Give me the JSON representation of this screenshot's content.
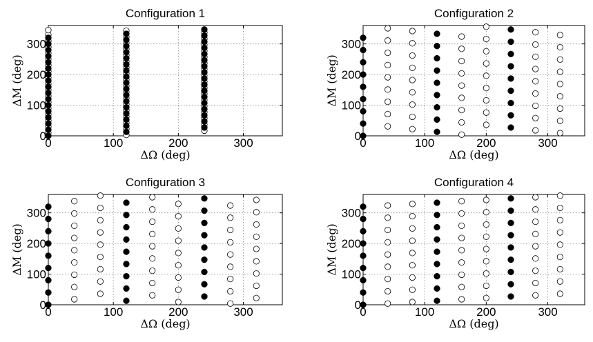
{
  "chart_data": [
    {
      "type": "scatter",
      "title": "Configuration 1",
      "xlabel": "ΔΩ (deg)",
      "ylabel": "ΔM (deg)",
      "xlim": [
        0,
        360
      ],
      "ylim": [
        0,
        360
      ],
      "xticks": [
        0,
        100,
        200,
        300
      ],
      "yticks": [
        0,
        100,
        200,
        300
      ],
      "grid": true,
      "filled": [
        [
          0,
          0
        ],
        [
          0,
          20
        ],
        [
          0,
          40
        ],
        [
          0,
          60
        ],
        [
          0,
          80
        ],
        [
          0,
          100
        ],
        [
          0,
          120
        ],
        [
          0,
          140
        ],
        [
          0,
          160
        ],
        [
          0,
          180
        ],
        [
          0,
          200
        ],
        [
          0,
          220
        ],
        [
          0,
          240
        ],
        [
          0,
          260
        ],
        [
          0,
          280
        ],
        [
          0,
          300
        ],
        [
          0,
          320
        ],
        [
          120,
          13
        ],
        [
          120,
          33
        ],
        [
          120,
          53
        ],
        [
          120,
          73
        ],
        [
          120,
          93
        ],
        [
          120,
          113
        ],
        [
          120,
          133
        ],
        [
          120,
          153
        ],
        [
          120,
          173
        ],
        [
          120,
          193
        ],
        [
          120,
          213
        ],
        [
          120,
          233
        ],
        [
          120,
          253
        ],
        [
          120,
          273
        ],
        [
          120,
          293
        ],
        [
          120,
          313
        ],
        [
          120,
          333
        ],
        [
          240,
          27
        ],
        [
          240,
          47
        ],
        [
          240,
          67
        ],
        [
          240,
          87
        ],
        [
          240,
          107
        ],
        [
          240,
          127
        ],
        [
          240,
          147
        ],
        [
          240,
          167
        ],
        [
          240,
          187
        ],
        [
          240,
          207
        ],
        [
          240,
          227
        ],
        [
          240,
          247
        ],
        [
          240,
          267
        ],
        [
          240,
          287
        ],
        [
          240,
          307
        ],
        [
          240,
          327
        ],
        [
          240,
          347
        ]
      ],
      "open": [
        [
          0,
          10
        ],
        [
          0,
          30
        ],
        [
          0,
          50
        ],
        [
          0,
          70
        ],
        [
          0,
          90
        ],
        [
          0,
          110
        ],
        [
          0,
          130
        ],
        [
          0,
          150
        ],
        [
          0,
          170
        ],
        [
          0,
          190
        ],
        [
          0,
          210
        ],
        [
          0,
          230
        ],
        [
          0,
          250
        ],
        [
          0,
          270
        ],
        [
          0,
          290
        ],
        [
          0,
          310
        ],
        [
          0,
          330
        ],
        [
          0,
          345
        ],
        [
          120,
          3
        ],
        [
          120,
          23
        ],
        [
          120,
          43
        ],
        [
          120,
          63
        ],
        [
          120,
          83
        ],
        [
          120,
          103
        ],
        [
          120,
          123
        ],
        [
          120,
          143
        ],
        [
          120,
          163
        ],
        [
          120,
          183
        ],
        [
          120,
          203
        ],
        [
          120,
          223
        ],
        [
          120,
          243
        ],
        [
          120,
          263
        ],
        [
          120,
          283
        ],
        [
          120,
          303
        ],
        [
          120,
          323
        ],
        [
          120,
          343
        ],
        [
          240,
          17
        ],
        [
          240,
          37
        ],
        [
          240,
          57
        ],
        [
          240,
          77
        ],
        [
          240,
          97
        ],
        [
          240,
          117
        ],
        [
          240,
          137
        ],
        [
          240,
          157
        ],
        [
          240,
          177
        ],
        [
          240,
          197
        ],
        [
          240,
          217
        ],
        [
          240,
          237
        ],
        [
          240,
          257
        ],
        [
          240,
          277
        ],
        [
          240,
          297
        ],
        [
          240,
          317
        ],
        [
          240,
          337
        ]
      ]
    },
    {
      "type": "scatter",
      "title": "Configuration 2",
      "xlabel": "ΔΩ (deg)",
      "ylabel": "ΔM (deg)",
      "xlim": [
        0,
        360
      ],
      "ylim": [
        0,
        360
      ],
      "xticks": [
        0,
        100,
        200,
        300
      ],
      "yticks": [
        0,
        100,
        200,
        300
      ],
      "grid": true,
      "filled": [
        [
          0,
          0
        ],
        [
          0,
          40
        ],
        [
          0,
          80
        ],
        [
          0,
          120
        ],
        [
          0,
          160
        ],
        [
          0,
          200
        ],
        [
          0,
          240
        ],
        [
          0,
          280
        ],
        [
          0,
          320
        ],
        [
          120,
          13
        ],
        [
          120,
          53
        ],
        [
          120,
          93
        ],
        [
          120,
          133
        ],
        [
          120,
          173
        ],
        [
          120,
          213
        ],
        [
          120,
          253
        ],
        [
          120,
          293
        ],
        [
          120,
          333
        ],
        [
          240,
          27
        ],
        [
          240,
          67
        ],
        [
          240,
          107
        ],
        [
          240,
          147
        ],
        [
          240,
          187
        ],
        [
          240,
          227
        ],
        [
          240,
          267
        ],
        [
          240,
          307
        ],
        [
          240,
          347
        ]
      ],
      "open": [
        [
          40,
          31
        ],
        [
          40,
          71
        ],
        [
          40,
          111
        ],
        [
          40,
          151
        ],
        [
          40,
          191
        ],
        [
          40,
          231
        ],
        [
          40,
          271
        ],
        [
          40,
          311
        ],
        [
          40,
          351
        ],
        [
          80,
          22
        ],
        [
          80,
          62
        ],
        [
          80,
          102
        ],
        [
          80,
          142
        ],
        [
          80,
          182
        ],
        [
          80,
          222
        ],
        [
          80,
          262
        ],
        [
          80,
          302
        ],
        [
          80,
          342
        ],
        [
          160,
          4
        ],
        [
          160,
          44
        ],
        [
          160,
          84
        ],
        [
          160,
          124
        ],
        [
          160,
          164
        ],
        [
          160,
          204
        ],
        [
          160,
          244
        ],
        [
          160,
          284
        ],
        [
          160,
          324
        ],
        [
          200,
          36
        ],
        [
          200,
          76
        ],
        [
          200,
          116
        ],
        [
          200,
          156
        ],
        [
          200,
          196
        ],
        [
          200,
          236
        ],
        [
          200,
          276
        ],
        [
          200,
          316
        ],
        [
          200,
          356
        ],
        [
          280,
          18
        ],
        [
          280,
          58
        ],
        [
          280,
          98
        ],
        [
          280,
          138
        ],
        [
          280,
          178
        ],
        [
          280,
          218
        ],
        [
          280,
          258
        ],
        [
          280,
          298
        ],
        [
          280,
          338
        ],
        [
          320,
          9
        ],
        [
          320,
          49
        ],
        [
          320,
          89
        ],
        [
          320,
          129
        ],
        [
          320,
          169
        ],
        [
          320,
          209
        ],
        [
          320,
          249
        ],
        [
          320,
          289
        ],
        [
          320,
          329
        ]
      ]
    },
    {
      "type": "scatter",
      "title": "Configuration 3",
      "xlabel": "ΔΩ (deg)",
      "ylabel": "ΔM (deg)",
      "xlim": [
        0,
        360
      ],
      "ylim": [
        0,
        360
      ],
      "xticks": [
        0,
        100,
        200,
        300
      ],
      "yticks": [
        0,
        100,
        200,
        300
      ],
      "grid": true,
      "filled": [
        [
          0,
          0
        ],
        [
          0,
          40
        ],
        [
          0,
          80
        ],
        [
          0,
          120
        ],
        [
          0,
          160
        ],
        [
          0,
          200
        ],
        [
          0,
          240
        ],
        [
          0,
          280
        ],
        [
          0,
          320
        ],
        [
          120,
          13
        ],
        [
          120,
          53
        ],
        [
          120,
          93
        ],
        [
          120,
          133
        ],
        [
          120,
          173
        ],
        [
          120,
          213
        ],
        [
          120,
          253
        ],
        [
          120,
          293
        ],
        [
          120,
          333
        ],
        [
          240,
          27
        ],
        [
          240,
          67
        ],
        [
          240,
          107
        ],
        [
          240,
          147
        ],
        [
          240,
          187
        ],
        [
          240,
          227
        ],
        [
          240,
          267
        ],
        [
          240,
          307
        ],
        [
          240,
          347
        ]
      ],
      "open": [
        [
          40,
          18
        ],
        [
          40,
          58
        ],
        [
          40,
          98
        ],
        [
          40,
          138
        ],
        [
          40,
          178
        ],
        [
          40,
          218
        ],
        [
          40,
          258
        ],
        [
          40,
          298
        ],
        [
          40,
          338
        ],
        [
          80,
          36
        ],
        [
          80,
          76
        ],
        [
          80,
          116
        ],
        [
          80,
          156
        ],
        [
          80,
          196
        ],
        [
          80,
          236
        ],
        [
          80,
          276
        ],
        [
          80,
          316
        ],
        [
          80,
          356
        ],
        [
          160,
          31
        ],
        [
          160,
          71
        ],
        [
          160,
          111
        ],
        [
          160,
          151
        ],
        [
          160,
          191
        ],
        [
          160,
          231
        ],
        [
          160,
          271
        ],
        [
          160,
          311
        ],
        [
          160,
          351
        ],
        [
          200,
          9
        ],
        [
          200,
          49
        ],
        [
          200,
          89
        ],
        [
          200,
          129
        ],
        [
          200,
          169
        ],
        [
          200,
          209
        ],
        [
          200,
          249
        ],
        [
          200,
          289
        ],
        [
          200,
          329
        ],
        [
          280,
          4
        ],
        [
          280,
          44
        ],
        [
          280,
          84
        ],
        [
          280,
          124
        ],
        [
          280,
          164
        ],
        [
          280,
          204
        ],
        [
          280,
          244
        ],
        [
          280,
          284
        ],
        [
          280,
          324
        ],
        [
          320,
          22
        ],
        [
          320,
          62
        ],
        [
          320,
          102
        ],
        [
          320,
          142
        ],
        [
          320,
          182
        ],
        [
          320,
          222
        ],
        [
          320,
          262
        ],
        [
          320,
          302
        ],
        [
          320,
          342
        ]
      ]
    },
    {
      "type": "scatter",
      "title": "Configuration 4",
      "xlabel": "ΔΩ (deg)",
      "ylabel": "ΔM (deg)",
      "xlim": [
        0,
        360
      ],
      "ylim": [
        0,
        360
      ],
      "xticks": [
        0,
        100,
        200,
        300
      ],
      "yticks": [
        0,
        100,
        200,
        300
      ],
      "grid": true,
      "filled": [
        [
          0,
          0
        ],
        [
          0,
          40
        ],
        [
          0,
          80
        ],
        [
          0,
          120
        ],
        [
          0,
          160
        ],
        [
          0,
          200
        ],
        [
          0,
          240
        ],
        [
          0,
          280
        ],
        [
          0,
          320
        ],
        [
          120,
          13
        ],
        [
          120,
          53
        ],
        [
          120,
          93
        ],
        [
          120,
          133
        ],
        [
          120,
          173
        ],
        [
          120,
          213
        ],
        [
          120,
          253
        ],
        [
          120,
          293
        ],
        [
          120,
          333
        ],
        [
          240,
          27
        ],
        [
          240,
          67
        ],
        [
          240,
          107
        ],
        [
          240,
          147
        ],
        [
          240,
          187
        ],
        [
          240,
          227
        ],
        [
          240,
          267
        ],
        [
          240,
          307
        ],
        [
          240,
          347
        ]
      ],
      "open": [
        [
          40,
          4
        ],
        [
          40,
          44
        ],
        [
          40,
          84
        ],
        [
          40,
          124
        ],
        [
          40,
          164
        ],
        [
          40,
          204
        ],
        [
          40,
          244
        ],
        [
          40,
          284
        ],
        [
          40,
          324
        ],
        [
          80,
          9
        ],
        [
          80,
          49
        ],
        [
          80,
          89
        ],
        [
          80,
          129
        ],
        [
          80,
          169
        ],
        [
          80,
          209
        ],
        [
          80,
          249
        ],
        [
          80,
          289
        ],
        [
          80,
          329
        ],
        [
          160,
          18
        ],
        [
          160,
          58
        ],
        [
          160,
          98
        ],
        [
          160,
          138
        ],
        [
          160,
          178
        ],
        [
          160,
          218
        ],
        [
          160,
          258
        ],
        [
          160,
          298
        ],
        [
          160,
          338
        ],
        [
          200,
          22
        ],
        [
          200,
          62
        ],
        [
          200,
          102
        ],
        [
          200,
          142
        ],
        [
          200,
          182
        ],
        [
          200,
          222
        ],
        [
          200,
          262
        ],
        [
          200,
          302
        ],
        [
          200,
          342
        ],
        [
          280,
          31
        ],
        [
          280,
          71
        ],
        [
          280,
          111
        ],
        [
          280,
          151
        ],
        [
          280,
          191
        ],
        [
          280,
          231
        ],
        [
          280,
          271
        ],
        [
          280,
          311
        ],
        [
          280,
          351
        ],
        [
          320,
          36
        ],
        [
          320,
          76
        ],
        [
          320,
          116
        ],
        [
          320,
          156
        ],
        [
          320,
          196
        ],
        [
          320,
          236
        ],
        [
          320,
          276
        ],
        [
          320,
          316
        ],
        [
          320,
          356
        ]
      ]
    }
  ]
}
